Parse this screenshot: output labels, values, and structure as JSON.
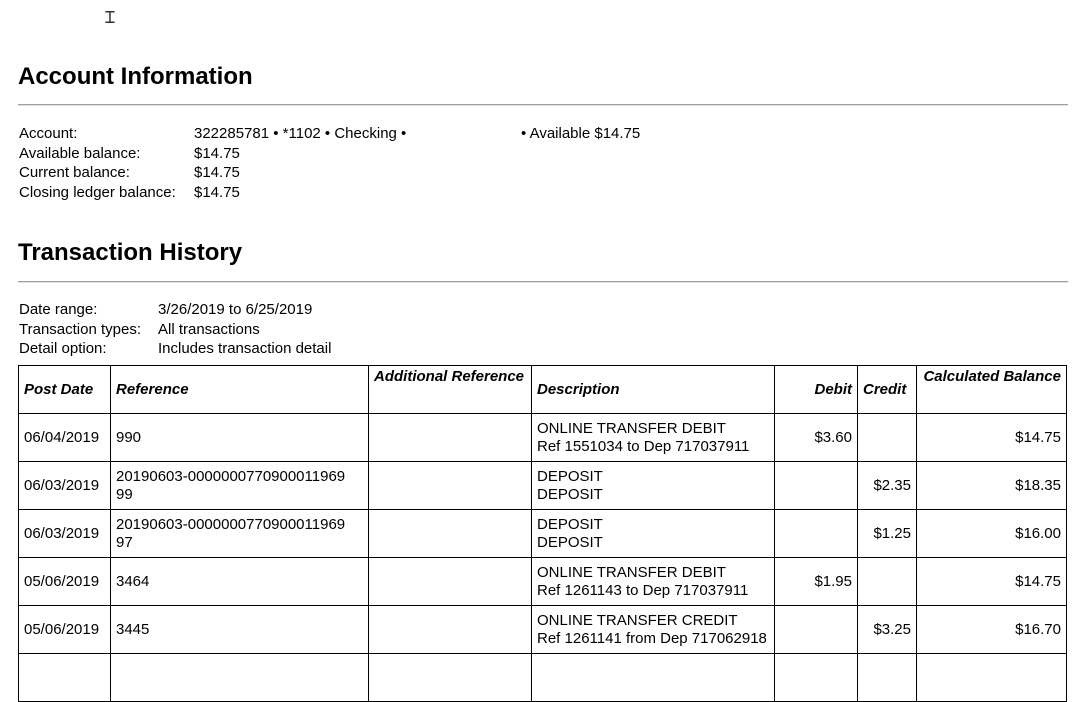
{
  "account_info": {
    "title": "Account Information",
    "rows": [
      {
        "label": "Account:",
        "value": "322285781 • *1102 • Checking •"
      },
      {
        "label": "Available balance:",
        "value": "$14.75"
      },
      {
        "label": "Current balance:",
        "value": "$14.75"
      },
      {
        "label": "Closing ledger balance:",
        "value": "$14.75"
      }
    ],
    "available_note": "• Available $14.75"
  },
  "history": {
    "title": "Transaction History",
    "rows": [
      {
        "label": "Date range:",
        "value": "3/26/2019 to 6/25/2019"
      },
      {
        "label": "Transaction types:",
        "value": "All transactions"
      },
      {
        "label": "Detail option:",
        "value": "Includes transaction detail"
      }
    ]
  },
  "table": {
    "headers": [
      "Post Date",
      "Reference",
      "Additional Reference",
      "Description",
      "Debit",
      "Credit",
      "Calculated Balance"
    ],
    "rows": [
      {
        "date": "06/04/2019",
        "ref": "990",
        "addref": "",
        "desc1": "ONLINE TRANSFER DEBIT",
        "desc2": "Ref 1551034 to Dep 717037911",
        "debit": "$3.60",
        "credit": "",
        "balance": "$14.75"
      },
      {
        "date": "06/03/2019",
        "ref": "20190603-0000000770900011969 99",
        "addref": "",
        "desc1": "DEPOSIT",
        "desc2": "DEPOSIT",
        "debit": "",
        "credit": "$2.35",
        "balance": "$18.35"
      },
      {
        "date": "06/03/2019",
        "ref": "20190603-0000000770900011969 97",
        "addref": "",
        "desc1": "DEPOSIT",
        "desc2": "DEPOSIT",
        "debit": "",
        "credit": "$1.25",
        "balance": "$16.00"
      },
      {
        "date": "05/06/2019",
        "ref": "3464",
        "addref": "",
        "desc1": "ONLINE TRANSFER DEBIT",
        "desc2": "Ref 1261143 to Dep 717037911",
        "debit": "$1.95",
        "credit": "",
        "balance": "$14.75"
      },
      {
        "date": "05/06/2019",
        "ref": "3445",
        "addref": "",
        "desc1": "ONLINE TRANSFER CREDIT",
        "desc2": "Ref 1261141 from Dep 717062918",
        "debit": "",
        "credit": "$3.25",
        "balance": "$16.70"
      }
    ]
  }
}
